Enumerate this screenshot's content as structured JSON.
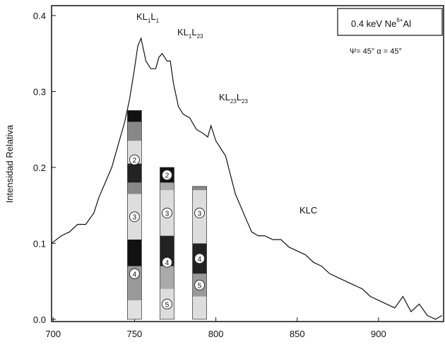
{
  "chart_data": {
    "type": "line",
    "y_label": "Intensidad Relativa",
    "x": [
      699,
      705,
      710,
      715,
      720,
      725,
      728,
      732,
      736,
      740,
      744,
      747,
      750,
      752,
      754,
      757,
      760,
      763,
      765,
      767,
      770,
      772,
      774,
      777,
      780,
      784,
      788,
      792,
      795,
      797,
      800,
      803,
      806,
      809,
      812,
      815,
      818,
      822,
      826,
      830,
      835,
      840,
      845,
      850,
      855,
      860,
      865,
      870,
      875,
      880,
      885,
      890,
      895,
      900,
      905,
      910,
      915,
      920,
      925,
      930,
      935,
      939
    ],
    "values": [
      0.1,
      0.11,
      0.115,
      0.125,
      0.125,
      0.14,
      0.16,
      0.18,
      0.2,
      0.23,
      0.26,
      0.29,
      0.33,
      0.36,
      0.37,
      0.34,
      0.33,
      0.33,
      0.345,
      0.35,
      0.34,
      0.34,
      0.31,
      0.28,
      0.27,
      0.265,
      0.25,
      0.245,
      0.24,
      0.255,
      0.235,
      0.225,
      0.215,
      0.19,
      0.165,
      0.15,
      0.135,
      0.115,
      0.11,
      0.11,
      0.105,
      0.105,
      0.095,
      0.09,
      0.085,
      0.075,
      0.07,
      0.06,
      0.055,
      0.05,
      0.045,
      0.04,
      0.03,
      0.025,
      0.02,
      0.015,
      0.03,
      0.01,
      0.02,
      0.005,
      0.0,
      0.005
    ],
    "color": "#111111",
    "xlim": [
      699,
      940
    ],
    "xticks": [
      700,
      750,
      800,
      850,
      900
    ],
    "ylim": [
      -0.003,
      0.413
    ],
    "yticks": [
      {
        "value": 0,
        "label": "0.0"
      },
      0.1,
      0.2,
      0.3,
      0.4
    ],
    "bars": [
      {
        "x": 750,
        "segments": [
          {
            "value": 0.025,
            "color": "#e0e0e0"
          },
          {
            "value": 0.045,
            "color": "#999999"
          },
          {
            "value": 0.035,
            "color": "#111111"
          },
          {
            "value": 0.06,
            "color": "#dddddd"
          },
          {
            "value": 0.015,
            "color": "#888888"
          },
          {
            "value": 0.025,
            "color": "#222222"
          },
          {
            "value": 0.03,
            "color": "#dddddd"
          },
          {
            "value": 0.025,
            "color": "#888888"
          },
          {
            "value": 0.015,
            "color": "#111111"
          }
        ],
        "labels": [
          {
            "y": 0.21,
            "label": "2"
          },
          {
            "y": 0.135,
            "label": "3"
          },
          {
            "y": 0.06,
            "label": "4"
          }
        ]
      },
      {
        "x": 770,
        "segments": [
          {
            "value": 0.04,
            "color": "#dddddd"
          },
          {
            "value": 0.03,
            "color": "#aaaaaa"
          },
          {
            "value": 0.04,
            "color": "#222222"
          },
          {
            "value": 0.06,
            "color": "#dddddd"
          },
          {
            "value": 0.01,
            "color": "#aaaaaa"
          },
          {
            "value": 0.02,
            "color": "#111111"
          }
        ],
        "labels": [
          {
            "y": 0.19,
            "label": "2"
          },
          {
            "y": 0.14,
            "label": "3"
          },
          {
            "y": 0.075,
            "label": "4"
          },
          {
            "y": 0.02,
            "label": "5"
          }
        ]
      },
      {
        "x": 790,
        "segments": [
          {
            "value": 0.03,
            "color": "#dddddd"
          },
          {
            "value": 0.03,
            "color": "#999999"
          },
          {
            "value": 0.04,
            "color": "#222222"
          },
          {
            "value": 0.07,
            "color": "#dddddd"
          },
          {
            "value": 0.005,
            "color": "#888888"
          }
        ],
        "labels": [
          {
            "y": 0.14,
            "label": "3"
          },
          {
            "y": 0.08,
            "label": "4"
          },
          {
            "y": 0.045,
            "label": "5"
          }
        ]
      }
    ],
    "annotations": {
      "kl1l1": [
        "KL",
        "1",
        "L",
        "1"
      ],
      "kl1l23": [
        "KL",
        "1",
        "L",
        "23"
      ],
      "kl23l23": [
        "KL",
        "23",
        "L",
        "23"
      ],
      "klc": "KLC"
    },
    "legend": {
      "text": "0.4 keV Ne",
      "sup": "6+",
      "tail": "Al",
      "angles": "Ψ= 45°   α = 45°"
    }
  }
}
